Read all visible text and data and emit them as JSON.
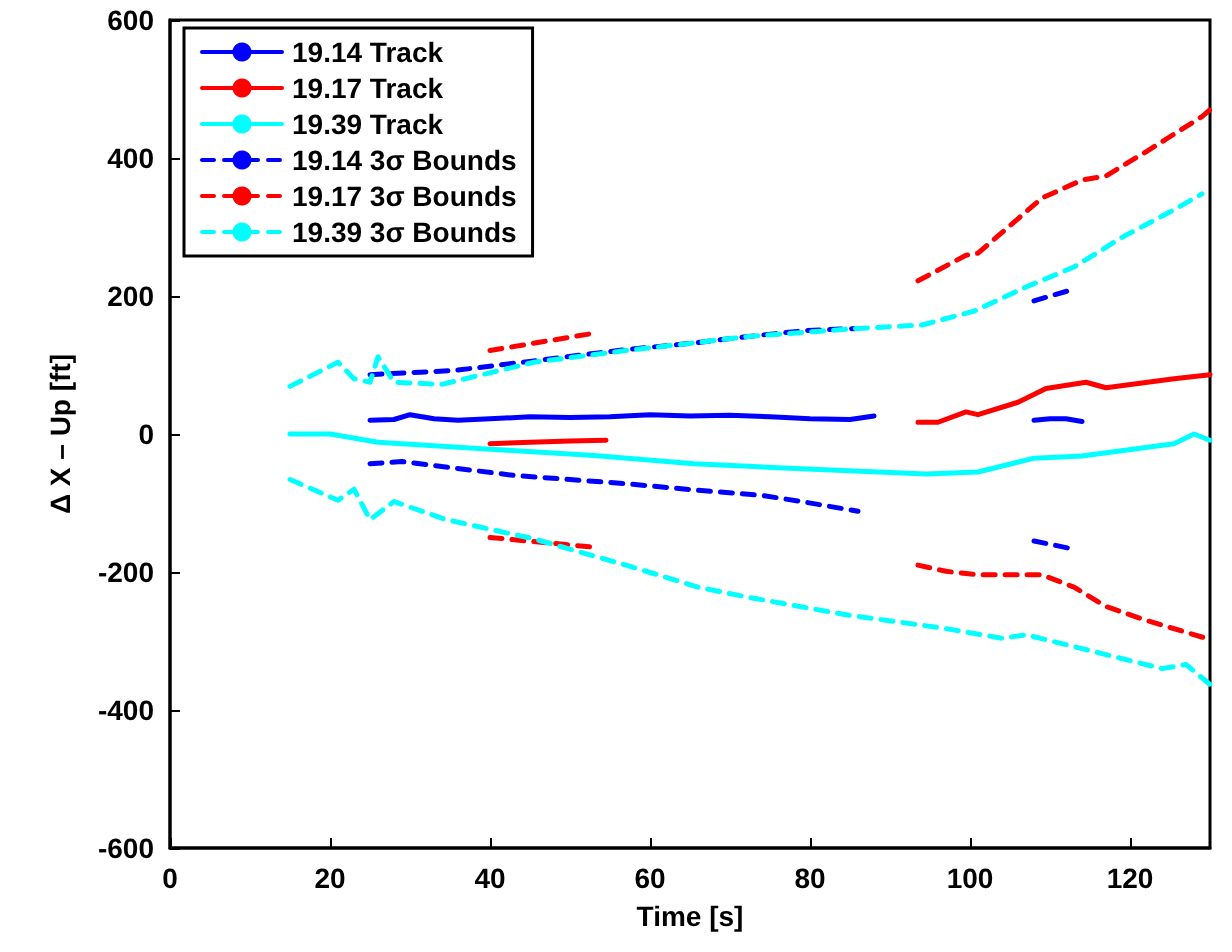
{
  "chart_data": {
    "type": "line",
    "xlabel": "Time [s]",
    "ylabel": "Δ X – Up [ft]",
    "xlim": [
      0,
      130
    ],
    "xticks": [
      0,
      20,
      40,
      60,
      80,
      100,
      120
    ],
    "ylim": [
      -600,
      600
    ],
    "yticks": [
      -600,
      -400,
      -200,
      0,
      200,
      400,
      600
    ],
    "grid": false,
    "legend": "top left",
    "marker": "none",
    "series": [
      {
        "name": "19.14 Track",
        "color": "#0000ff",
        "line_style": "solid",
        "x": [
          25,
          28,
          30,
          33,
          36,
          40,
          45,
          50,
          55,
          60,
          65,
          70,
          75,
          80,
          85,
          88,
          98,
          108,
          110,
          112,
          114
        ],
        "values": [
          20,
          21,
          28,
          22,
          20,
          22,
          25,
          24,
          25,
          28,
          26,
          27,
          25,
          22,
          21,
          26,
          null,
          20,
          22,
          22,
          18
        ]
      },
      {
        "name": "19.17 Track",
        "color": "#ff0000",
        "line_style": "solid",
        "x": [
          40,
          45,
          50,
          54.5,
          74,
          93.5,
          96,
          99.5,
          101,
          106,
          109.5,
          114.5,
          117,
          125.5,
          130
        ],
        "values": [
          -14,
          -12,
          -10,
          -9,
          null,
          17,
          17,
          32,
          28,
          46,
          66,
          75,
          67,
          80,
          86
        ]
      },
      {
        "name": "19.39 Track",
        "color": "#00ffff",
        "line_style": "solid",
        "x": [
          15,
          20,
          26,
          40,
          53,
          65.5,
          76,
          94.5,
          101,
          108,
          114,
          125.5,
          128,
          130
        ],
        "values": [
          0,
          0,
          -12,
          -22,
          -31,
          -43,
          -49,
          -58,
          -55,
          -35,
          -32,
          -14,
          0,
          -9
        ]
      },
      {
        "name": "19.14 3σ Bounds",
        "color": "#0000ff",
        "line_style": "dashed",
        "x": [
          25,
          35.5,
          45.5,
          56,
          65.5,
          72,
          79.5,
          86,
          97,
          108,
          113
        ],
        "values": [
          86,
          92,
          106,
          121,
          132,
          141,
          150,
          153,
          null,
          193,
          210
        ]
      },
      {
        "color": "#0000ff",
        "line_style": "dashed",
        "x": [
          25,
          29,
          43,
          57,
          65.5,
          74,
          79,
          86,
          97,
          108,
          113
        ],
        "values": [
          -43,
          -40,
          -60,
          -72,
          -81,
          -89,
          -98,
          -112,
          null,
          -155,
          -167
        ]
      },
      {
        "name": "19.17 3σ Bounds",
        "color": "#ff0000",
        "line_style": "dashed",
        "x": [
          40,
          53.5,
          74,
          93.5,
          99.5,
          101,
          109,
          114,
          117,
          122,
          129,
          130
        ],
        "values": [
          121,
          147,
          null,
          222,
          259,
          262,
          342,
          368,
          374,
          409,
          460,
          470
        ]
      },
      {
        "color": "#ff0000",
        "line_style": "dashed",
        "x": [
          40,
          53,
          74,
          93.5,
          97,
          101,
          109,
          113,
          117,
          122,
          129.5
        ],
        "values": [
          -150,
          -164,
          null,
          -190,
          -199,
          -204,
          -204,
          -222,
          -250,
          -270,
          -296
        ]
      },
      {
        "name": "19.39 3σ Bounds",
        "color": "#00ffff",
        "line_style": "dashed",
        "x": [
          15,
          21,
          23,
          25,
          26,
          28,
          34,
          45.5,
          57,
          65.5,
          72,
          86,
          94,
          100.5,
          107,
          113,
          119,
          125.5,
          129
        ],
        "values": [
          69,
          104,
          80,
          75,
          112,
          75,
          72,
          104,
          121,
          132,
          141,
          153,
          158,
          178,
          213,
          242,
          285,
          325,
          348
        ]
      },
      {
        "color": "#00ffff",
        "line_style": "dashed",
        "x": [
          15,
          21,
          23,
          25,
          28,
          34.5,
          45.5,
          57,
          66,
          72,
          84.5,
          97,
          104,
          107,
          114,
          124,
          127,
          130
        ],
        "values": [
          -66,
          -96,
          -80,
          -124,
          -98,
          -124,
          -152,
          -190,
          -222,
          -236,
          -262,
          -282,
          -296,
          -291,
          -311,
          -340,
          -334,
          -363
        ]
      }
    ]
  }
}
